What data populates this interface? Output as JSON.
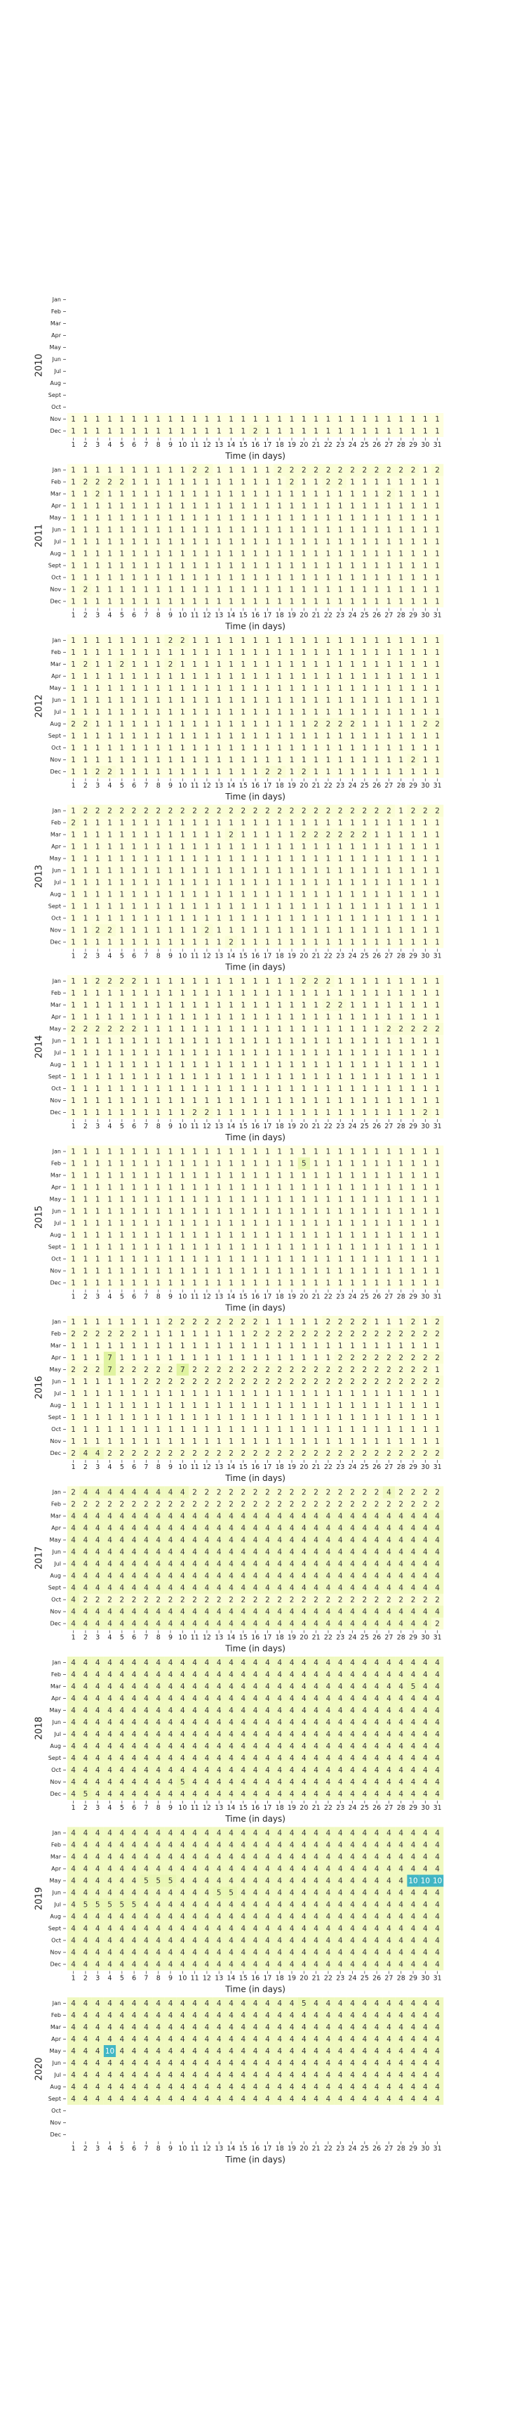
{
  "chart_data": {
    "type": "heatmap",
    "xlabel": "Time (in days)",
    "x_ticks": [
      "1",
      "2",
      "3",
      "4",
      "5",
      "6",
      "7",
      "8",
      "9",
      "10",
      "11",
      "12",
      "13",
      "14",
      "15",
      "16",
      "17",
      "18",
      "19",
      "20",
      "21",
      "22",
      "23",
      "24",
      "25",
      "26",
      "27",
      "28",
      "29",
      "30",
      "31"
    ],
    "y_ticks": [
      "Jan",
      "Feb",
      "Mar",
      "Apr",
      "May",
      "Jun",
      "Jul",
      "Aug",
      "Sept",
      "Oct",
      "Nov",
      "Dec"
    ],
    "colormap": {
      "low": "#ffffe0",
      "mid": "#e0f3a0",
      "high": "#41b6c4"
    },
    "panels": [
      {
        "year": "2010",
        "rows": [
          "",
          "",
          "",
          "",
          "",
          "",
          "",
          "",
          "",
          "",
          "1111111111111111111111111111111",
          "1111111111111112111111111111111"
        ]
      },
      {
        "year": "2011",
        "rows": [
          "1111111111221111122222222222212",
          "1222211111111111112112211111111",
          "1121111111111111111111111121111",
          "1111111111111111111111111111111",
          "1111111111111111111111111111111",
          "1111111111111111111111111111111",
          "1111111111111111111111111111111",
          "1111111111111111111111111111111",
          "1111111111111111111111111111111",
          "1111111111111111111111111111111",
          "1211111111111111111111111111111",
          "1111111111111111111111111111111"
        ]
      },
      {
        "year": "2012",
        "rows": [
          "1111111122111111111111111111111",
          "1111111111111111111111111111111",
          "1211211121111111111111111111111",
          "1111111111111111111111111111111",
          "1111111111111111111111111111111",
          "1111111111111111111111111111111",
          "1111111111111111111111111111111",
          "2211111111111111111122221111122",
          "1111111111111111111111111111111",
          "1111111111111111111111111111111",
          "1111111111111111111111111111211",
          "1122111111111111221211111111111"
        ]
      },
      {
        "year": "2013",
        "rows": [
          "1222222222222222222222222221222",
          "2111111111111111111111111111111",
          "1111111111111211111222222111111",
          "1111111111111111111111111111111",
          "1111111111111111111111111111111",
          "1111111111111111111111111111111",
          "1111111111111111111111111111111",
          "1111111111111111111111111111111",
          "1111111111111111111111111111111",
          "1111111111111111111111111111111",
          "1122111111121111111111111111111",
          "1111111111111211111111111111111"
        ]
      },
      {
        "year": "2014",
        "rows": [
          "1122221111111111111222111111111",
          "1111111111111111111111111111111",
          "1111111111111111111112211111111",
          "1111111111111111111111111111111",
          "2222221111111111111111111122222",
          "1111111111111111111111111111111",
          "1111111111111111111111111111111",
          "1111111111111111111111111111111",
          "1111111111111111111111111111111",
          "1111111111111111111111111111111",
          "1111111111111111111111111111111",
          "1111111111221111111111111111121"
        ]
      },
      {
        "year": "2015",
        "rows": [
          "1111111111111111111111111111111",
          "1111111111111111111511111111111",
          "1111111111111111111111111111111",
          "1111111111111111111111111111111",
          "1111111111111111111111111111111",
          "1111111111111111111111111111111",
          "1111111111111111111111111111111",
          "1111111111111111111111111111111",
          "1111111111111111111111111111111",
          "1111111111111111111111111111111",
          "1111111111111111111111111111111",
          "1111111111111111111111111111111"
        ]
      },
      {
        "year": "2016",
        "rows": [
          "1111111122222222111112222111212",
          "2222221111111112222222222222222",
          "1111111111111111111111111111111",
          "1117111111111111111111222222222",
          "2227222227222222222222222222221",
          "1111112222222222222222222222222",
          "1111111111111111111111111111111",
          "1111111111111111111111111111111",
          "1111111111111111111111111111111",
          "1111111111111111111111111111111",
          "1111111111111111111111111111111",
          "2442222222222222222222222222222"
        ]
      },
      {
        "year": "2017",
        "rows": [
          "2444444444222222222222222242222",
          "2222222222222222222222222222222",
          "4444444444444444444444444444444",
          "4444444444444444444444444444444",
          "4444444444444444444444444444444",
          "4444444444444444444444444444444",
          "4444444444444444444444444444444",
          "4444444444444444444444444444444",
          "4444444444444444444444444444444",
          "4222222222222222222222222222222",
          "4444444444444444444444444444444",
          "4444444444444444444444444444442"
        ]
      },
      {
        "year": "2018",
        "rows": [
          "4444444444444444444444444444444",
          "4444444444444444444444444444444",
          "4444444444444444444444444444544",
          "4444444444444444444444444444444",
          "4444444444444444444444444444444",
          "4444444444444444444444444444444",
          "4444444444444444444444444444444",
          "4444444444444444444444444444444",
          "4444444444444444444444444444444",
          "4444444444444444444444444444444",
          "4444444445444444444444444444444",
          "4544444444444444444444444444444"
        ]
      },
      {
        "year": "2019",
        "rows": [
          "4444444444444444444444444444444",
          "4444444444444444444444444444444",
          "4444444444444444444444444444444",
          "4444444444444444444444444444444",
          "4444445554444444444444444444AAA",
          "4444444444445544444444444444444",
          "4555554444444444444444444444444",
          "4444444444444444444444444444444",
          "4444444444444444444444444444444",
          "4444444444444444444444444444444",
          "4444444444444444444444444444444",
          "4444444444444444444444444444444"
        ]
      },
      {
        "year": "2020",
        "rows": [
          "4444444444444444444544444444444",
          "4444444444444444444444444444444",
          "4444444444444444444444444444444",
          "4444444444444444444444444444444",
          "444A444444444444444444444444444",
          "4444444444444444444444444444444",
          "4444444444444444444444444444444",
          "4444444444444444444444444444444",
          "4444444444444444444444444444444",
          "",
          "",
          ""
        ]
      }
    ]
  }
}
